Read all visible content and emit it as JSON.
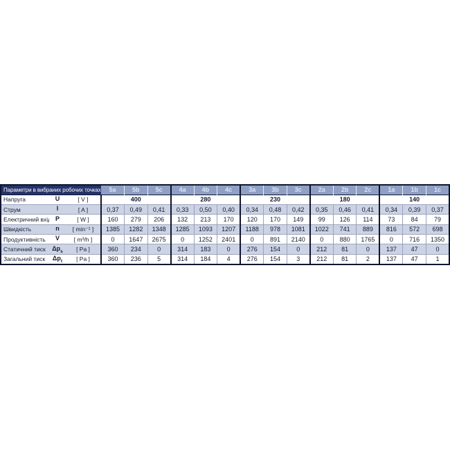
{
  "page": {
    "background": "#ffffff"
  },
  "table": {
    "title": "Параметри в вибраних робочих точках",
    "columns": [
      "5a",
      "5b",
      "5c",
      "4a",
      "4b",
      "4c",
      "3a",
      "3b",
      "3c",
      "2a",
      "2b",
      "2c",
      "1a",
      "1b",
      "1c"
    ],
    "voltage": {
      "label": "Напруга",
      "symbol": "U",
      "symbol_sub": "",
      "unit": "[ V ]",
      "group_values": [
        "400",
        "280",
        "230",
        "180",
        "140"
      ]
    },
    "rows": [
      {
        "label": "Струм",
        "symbol": "I",
        "symbol_sub": "",
        "unit": "[ A ]",
        "shaded": true,
        "values": [
          "0,37",
          "0,49",
          "0,41",
          "0,33",
          "0,50",
          "0,40",
          "0,34",
          "0,48",
          "0,42",
          "0,35",
          "0,46",
          "0,41",
          "0,34",
          "0,39",
          "0,37"
        ]
      },
      {
        "label": "Електричний вхід",
        "symbol": "P",
        "symbol_sub": "",
        "unit": "[ W ]",
        "shaded": false,
        "values": [
          "160",
          "279",
          "206",
          "132",
          "213",
          "170",
          "120",
          "170",
          "149",
          "99",
          "126",
          "114",
          "73",
          "84",
          "79"
        ]
      },
      {
        "label": "Швидкість",
        "symbol": "n",
        "symbol_sub": "",
        "unit": "[ min⁻¹ ]",
        "shaded": true,
        "values": [
          "1385",
          "1282",
          "1348",
          "1285",
          "1093",
          "1207",
          "1188",
          "978",
          "1081",
          "1022",
          "741",
          "889",
          "816",
          "572",
          "698"
        ]
      },
      {
        "label": "Продуктивність",
        "symbol": "V",
        "symbol_sub": "",
        "unit": "[ m³/h ]",
        "shaded": false,
        "values": [
          "0",
          "1647",
          "2675",
          "0",
          "1252",
          "2401",
          "0",
          "891",
          "2140",
          "0",
          "880",
          "1765",
          "0",
          "716",
          "1350"
        ]
      },
      {
        "label": "Статичний тиск",
        "symbol": "Δp",
        "symbol_sub": "s",
        "unit": "[ Pa ]",
        "shaded": true,
        "values": [
          "360",
          "234",
          "0",
          "314",
          "183",
          "0",
          "276",
          "154",
          "0",
          "212",
          "81",
          "0",
          "137",
          "47",
          "0"
        ]
      },
      {
        "label": "Загальний тиск",
        "symbol": "Δp",
        "symbol_sub": "t",
        "unit": "[ Pa ]",
        "shaded": false,
        "values": [
          "360",
          "236",
          "5",
          "314",
          "184",
          "4",
          "276",
          "154",
          "3",
          "212",
          "81",
          "2",
          "137",
          "47",
          "1"
        ]
      }
    ],
    "colors": {
      "title_bg": "#253369",
      "title_text": "#ffffff",
      "col_header_bg": "#8fa0c4",
      "col_header_text": "#dfe6f3",
      "shaded_row_bg": "#cbd3e4",
      "text": "#141a30",
      "thick_border": "#10152e",
      "thin_border": "#98a2bd"
    }
  }
}
